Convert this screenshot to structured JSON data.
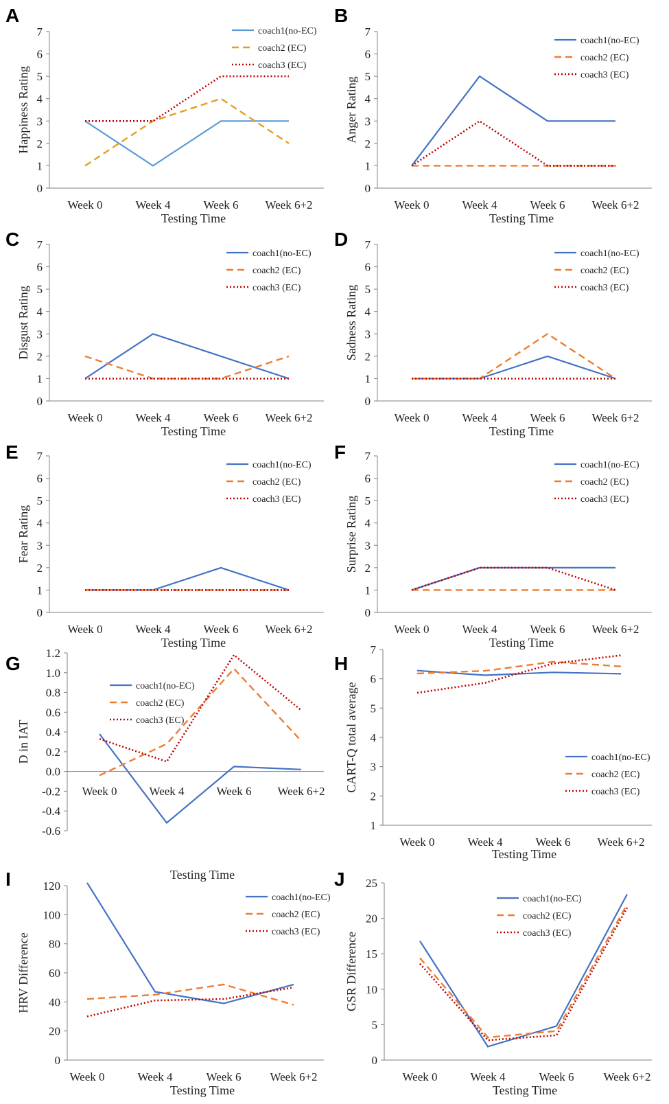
{
  "colors": {
    "coach1": "#4472C4",
    "coach1_light": "#5B9BD5",
    "coach2": "#ED7D31",
    "coach2_A": "#E3A020",
    "coach3": "#C00000"
  },
  "chart_data": [
    {
      "panel": "A",
      "type": "line",
      "categories": [
        "Week 0",
        "Week 4",
        "Week 6",
        "Week 6+2"
      ],
      "xlabel": "Testing Time",
      "ylabel": "Happiness Rating",
      "ylim": [
        0,
        7
      ],
      "yticks": [
        0,
        1,
        2,
        3,
        4,
        5,
        6,
        7
      ],
      "series": [
        {
          "name": "coach1(no-EC)",
          "values": [
            3,
            1,
            3,
            3
          ]
        },
        {
          "name": "coach2 (EC)",
          "values": [
            1,
            3,
            4,
            2
          ]
        },
        {
          "name": "coach3 (EC)",
          "values": [
            3,
            3,
            5,
            5
          ]
        }
      ]
    },
    {
      "panel": "B",
      "type": "line",
      "categories": [
        "Week 0",
        "Week 4",
        "Week 6",
        "Week 6+2"
      ],
      "xlabel": "Testing Time",
      "ylabel": "Anger Rating",
      "ylim": [
        0,
        7
      ],
      "yticks": [
        0,
        1,
        2,
        3,
        4,
        5,
        6,
        7
      ],
      "series": [
        {
          "name": "coach1(no-EC)",
          "values": [
            1,
            5,
            3,
            3
          ]
        },
        {
          "name": "coach2 (EC)",
          "values": [
            1,
            1,
            1,
            1
          ]
        },
        {
          "name": "coach3 (EC)",
          "values": [
            1,
            3,
            1,
            1
          ]
        }
      ]
    },
    {
      "panel": "C",
      "type": "line",
      "categories": [
        "Week 0",
        "Week 4",
        "Week 6",
        "Week 6+2"
      ],
      "xlabel": "Testing Time",
      "ylabel": "Disgust Rating",
      "ylim": [
        0,
        7
      ],
      "yticks": [
        0,
        1,
        2,
        3,
        4,
        5,
        6,
        7
      ],
      "series": [
        {
          "name": "coach1(no-EC)",
          "values": [
            1,
            3,
            2,
            1
          ]
        },
        {
          "name": "coach2 (EC)",
          "values": [
            2,
            1,
            1,
            2
          ]
        },
        {
          "name": "coach3 (EC)",
          "values": [
            1,
            1,
            1,
            1
          ]
        }
      ]
    },
    {
      "panel": "D",
      "type": "line",
      "categories": [
        "Week 0",
        "Week 4",
        "Week 6",
        "Week 6+2"
      ],
      "xlabel": "Testing Time",
      "ylabel": "Sadness Rating",
      "ylim": [
        0,
        7
      ],
      "yticks": [
        0,
        1,
        2,
        3,
        4,
        5,
        6,
        7
      ],
      "series": [
        {
          "name": "coach1(no-EC)",
          "values": [
            1,
            1,
            2,
            1
          ]
        },
        {
          "name": "coach2 (EC)",
          "values": [
            1,
            1,
            3,
            1
          ]
        },
        {
          "name": "coach3 (EC)",
          "values": [
            1,
            1,
            1,
            1
          ]
        }
      ]
    },
    {
      "panel": "E",
      "type": "line",
      "categories": [
        "Week 0",
        "Week 4",
        "Week 6",
        "Week 6+2"
      ],
      "xlabel": "Testing Time",
      "ylabel": "Fear Rating",
      "ylim": [
        0,
        7
      ],
      "yticks": [
        0,
        1,
        2,
        3,
        4,
        5,
        6,
        7
      ],
      "series": [
        {
          "name": "coach1(no-EC)",
          "values": [
            1,
            1,
            2,
            1
          ]
        },
        {
          "name": "coach2 (EC)",
          "values": [
            1,
            1,
            1,
            1
          ]
        },
        {
          "name": "coach3 (EC)",
          "values": [
            1,
            1,
            1,
            1
          ]
        }
      ]
    },
    {
      "panel": "F",
      "type": "line",
      "categories": [
        "Week 0",
        "Week 4",
        "Week 6",
        "Week 6+2"
      ],
      "xlabel": "Testing Time",
      "ylabel": "Surprise Rating",
      "ylim": [
        0,
        7
      ],
      "yticks": [
        0,
        1,
        2,
        3,
        4,
        5,
        6,
        7
      ],
      "series": [
        {
          "name": "coach1(no-EC)",
          "values": [
            1,
            2,
            2,
            2
          ]
        },
        {
          "name": "coach2 (EC)",
          "values": [
            1,
            1,
            1,
            1
          ]
        },
        {
          "name": "coach3 (EC)",
          "values": [
            1,
            2,
            2,
            1
          ]
        }
      ]
    },
    {
      "panel": "G",
      "type": "line",
      "categories": [
        "Week 0",
        "Week 4",
        "Week 6",
        "Week 6+2"
      ],
      "xlabel": "Testing Time",
      "ylabel": "D in IAT",
      "ylim": [
        -0.6,
        1.2
      ],
      "yticks": [
        -0.6,
        -0.4,
        -0.2,
        0.0,
        0.2,
        0.4,
        0.6,
        0.8,
        1.0,
        1.2
      ],
      "ytick_labels": [
        "-0.6",
        "-0.4",
        "-0.2",
        "0.0",
        "0.2",
        "0.4",
        "0.6",
        "0.8",
        "1.0",
        "1.2"
      ],
      "series": [
        {
          "name": "coach1(no-EC)",
          "values": [
            0.38,
            -0.52,
            0.05,
            0.02
          ]
        },
        {
          "name": "coach2 (EC)",
          "values": [
            -0.04,
            0.28,
            1.04,
            0.31
          ]
        },
        {
          "name": "coach3 (EC)",
          "values": [
            0.33,
            0.1,
            1.18,
            0.62
          ]
        }
      ]
    },
    {
      "panel": "H",
      "type": "line",
      "categories": [
        "Week 0",
        "Week 4",
        "Week 6",
        "Week 6+2"
      ],
      "xlabel": "Testing Time",
      "ylabel": "CART-Q total average",
      "ylim": [
        1,
        7
      ],
      "yticks": [
        1,
        2,
        3,
        4,
        5,
        6,
        7
      ],
      "series": [
        {
          "name": "coach1(no-EC)",
          "values": [
            6.28,
            6.12,
            6.22,
            6.17
          ]
        },
        {
          "name": "coach2 (EC)",
          "values": [
            6.18,
            6.27,
            6.58,
            6.42
          ]
        },
        {
          "name": "coach3 (EC)",
          "values": [
            5.52,
            5.86,
            6.52,
            6.8
          ]
        }
      ]
    },
    {
      "panel": "I",
      "type": "line",
      "categories": [
        "Week 0",
        "Week 4",
        "Week 6",
        "Week 6+2"
      ],
      "xlabel": "Testing Time",
      "ylabel": "HRV Difference",
      "ylim": [
        0,
        120
      ],
      "yticks": [
        0,
        20,
        40,
        60,
        80,
        100,
        120
      ],
      "series": [
        {
          "name": "coach1(no-EC)",
          "values": [
            122,
            47,
            39,
            52
          ]
        },
        {
          "name": "coach2 (EC)",
          "values": [
            42,
            45,
            52,
            38
          ]
        },
        {
          "name": "coach3 (EC)",
          "values": [
            30,
            41,
            42,
            50
          ]
        }
      ]
    },
    {
      "panel": "J",
      "type": "line",
      "categories": [
        "Week 0",
        "Week 4",
        "Week 6",
        "Week 6+2"
      ],
      "xlabel": "Testing Time",
      "ylabel": "GSR Difference",
      "ylim": [
        0,
        25
      ],
      "yticks": [
        0,
        5,
        10,
        15,
        20,
        25
      ],
      "series": [
        {
          "name": "coach1(no-EC)",
          "values": [
            16.8,
            1.9,
            4.8,
            23.4
          ]
        },
        {
          "name": "coach2 (EC)",
          "values": [
            14.4,
            3.2,
            4.1,
            22.0
          ]
        },
        {
          "name": "coach3 (EC)",
          "values": [
            13.6,
            2.8,
            3.5,
            21.5
          ]
        }
      ]
    }
  ]
}
